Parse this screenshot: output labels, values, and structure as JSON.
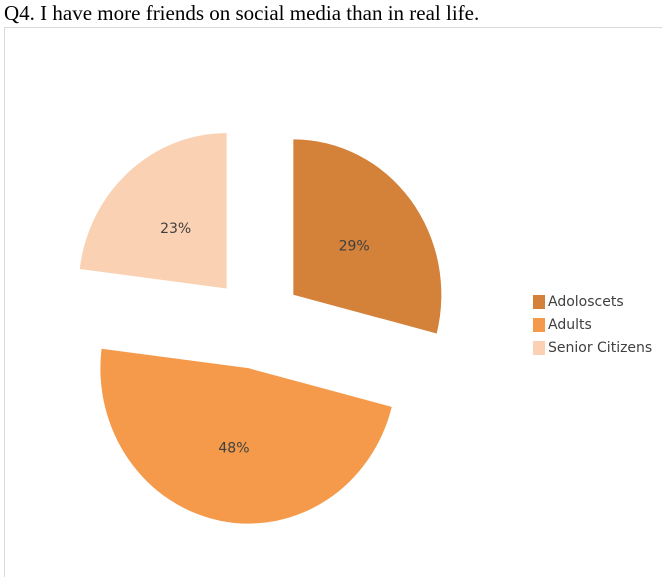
{
  "question": "Q4. I have more friends on social media than in real life.",
  "chart_data": {
    "type": "pie",
    "title": "",
    "exploded": true,
    "legend_position": "right",
    "slices": [
      {
        "label": "Adoloscets",
        "value": 29,
        "display": "29%",
        "color": "#D4813A"
      },
      {
        "label": "Adults",
        "value": 48,
        "display": "48%",
        "color": "#F59A4B"
      },
      {
        "label": "Senior Citizens",
        "value": 23,
        "display": "23%",
        "color": "#FAD1B3"
      }
    ]
  }
}
